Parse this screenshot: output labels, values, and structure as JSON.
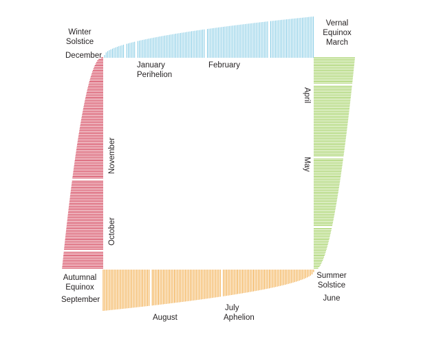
{
  "colors": {
    "top": "#7ec8e3",
    "right": "#8dc63f",
    "bottom": "#f0a030",
    "left": "#c8102e",
    "text": "#231f20"
  },
  "labels": {
    "winter_solstice": "Winter\nSolstice",
    "december": "December",
    "january": "January",
    "perihelion": "Perihelion",
    "february": "February",
    "vernal_equinox": "Vernal\nEquinox",
    "march": "March",
    "april": "April",
    "may": "May",
    "summer_solstice": "Summer\nSolstice",
    "june": "June",
    "july": "July",
    "aphelion": "Aphelion",
    "august": "August",
    "autumnal_equinox": "Autumnal\nEquinox",
    "september": "September",
    "october": "October",
    "november": "November"
  }
}
